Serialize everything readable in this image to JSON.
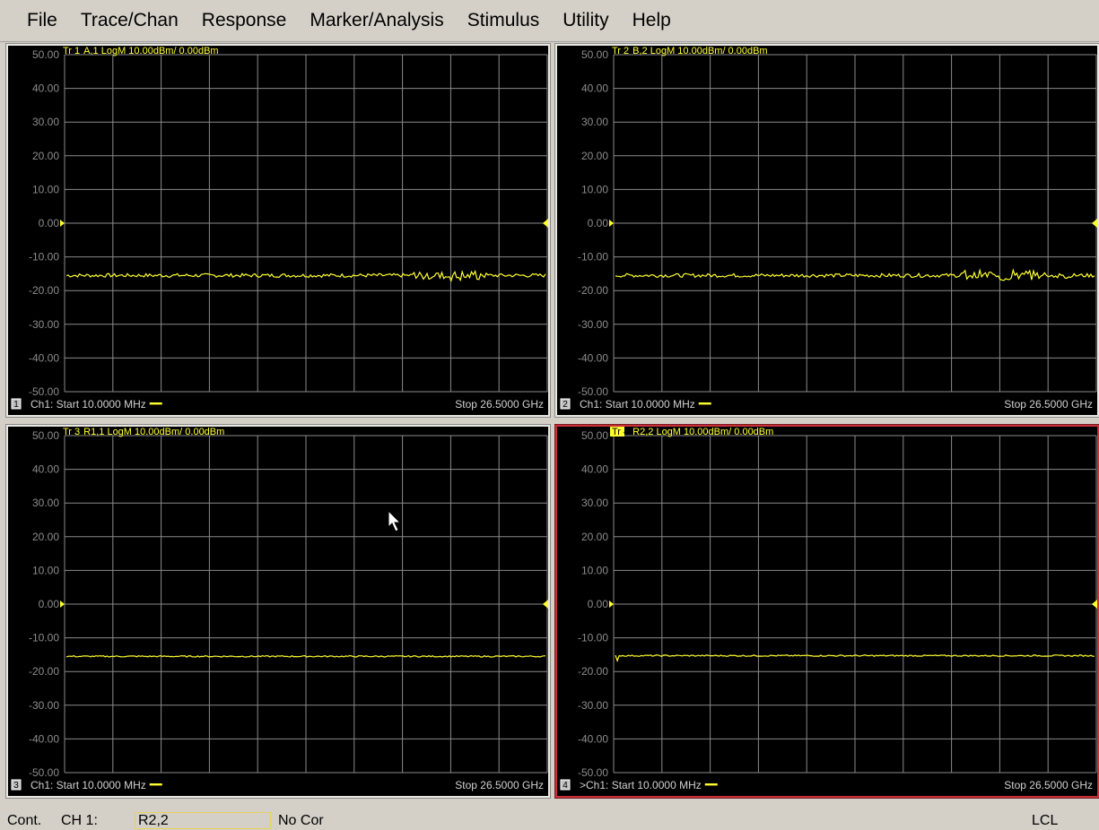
{
  "menu": [
    "File",
    "Trace/Chan",
    "Response",
    "Marker/Analysis",
    "Stimulus",
    "Utility",
    "Help"
  ],
  "colors": {
    "trace": "#ffff30",
    "label": "#ffff30",
    "grid": "#8a8a8a",
    "axis_text": "#8c8c8c",
    "footer_text": "#d0d0d0",
    "active_border": "#c8303a",
    "panel_bg": "#000000"
  },
  "y_axis": {
    "ticks": [
      "50.00",
      "40.00",
      "30.00",
      "20.00",
      "10.00",
      "0.00",
      "-10.00",
      "-20.00",
      "-30.00",
      "-40.00",
      "-50.00"
    ],
    "min": -50,
    "max": 50,
    "reference_level": 0
  },
  "panels": [
    {
      "number": "1",
      "trace_label": "Tr",
      "trace_number": "1",
      "trace_desc": "A,1 LogM 10.00dBm/  0.00dBm",
      "start": "Ch1: Start  10.0000 MHz",
      "stop": "Stop  26.5000 GHz",
      "active": false,
      "trace_level_dbm": -15.5,
      "trace_noise": "high"
    },
    {
      "number": "2",
      "trace_label": "Tr",
      "trace_number": "2",
      "trace_desc": "B,2 LogM 10.00dBm/  0.00dBm",
      "start": "Ch1: Start  10.0000 MHz",
      "stop": "Stop  26.5000 GHz",
      "active": false,
      "trace_level_dbm": -15.5,
      "trace_noise": "high"
    },
    {
      "number": "3",
      "trace_label": "Tr",
      "trace_number": "3",
      "trace_desc": "R1,1 LogM 10.00dBm/  0.00dBm",
      "start": "Ch1: Start  10.0000 MHz",
      "stop": "Stop  26.5000 GHz",
      "active": false,
      "trace_level_dbm": -15.5,
      "trace_noise": "low"
    },
    {
      "number": "4",
      "trace_label": "Tr",
      "trace_number": "4",
      "trace_desc": "R2,2 LogM 10.00dBm/  0.00dBm",
      "start": ">Ch1: Start  10.0000 MHz",
      "stop": "Stop  26.5000 GHz",
      "active": true,
      "trace_level_dbm": -15.3,
      "trace_noise": "low"
    }
  ],
  "status": {
    "mode": "Cont.",
    "channel": "CH 1:",
    "param": "R2,2",
    "correction": "No Cor",
    "remote": "LCL"
  }
}
